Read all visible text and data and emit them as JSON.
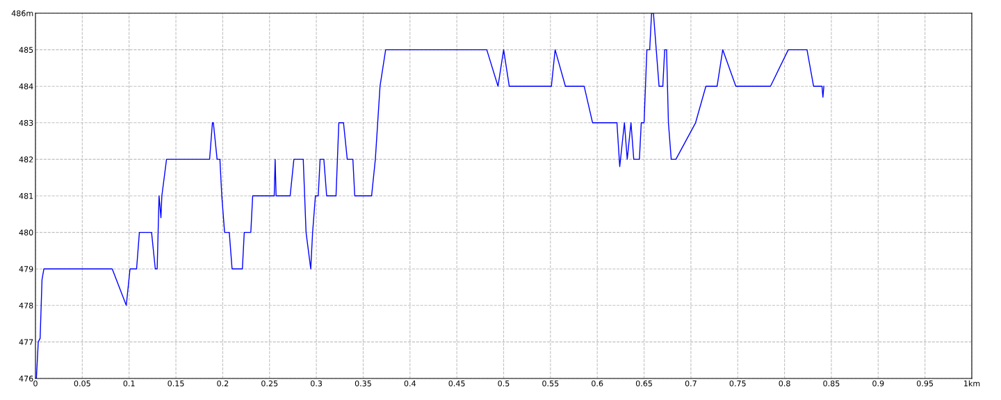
{
  "chart_data": {
    "type": "line",
    "series": [
      {
        "color": "#0000ff",
        "x": [
          0.001,
          0.003,
          0.005,
          0.007,
          0.009,
          0.082,
          0.097,
          0.101,
          0.108,
          0.111,
          0.124,
          0.128,
          0.13,
          0.132,
          0.134,
          0.135,
          0.14,
          0.186,
          0.189,
          0.19,
          0.194,
          0.197,
          0.199,
          0.202,
          0.207,
          0.21,
          0.221,
          0.223,
          0.23,
          0.232,
          0.255,
          0.256,
          0.257,
          0.272,
          0.276,
          0.286,
          0.289,
          0.294,
          0.296,
          0.299,
          0.302,
          0.304,
          0.308,
          0.311,
          0.321,
          0.324,
          0.329,
          0.333,
          0.339,
          0.341,
          0.359,
          0.363,
          0.368,
          0.374,
          0.482,
          0.494,
          0.5,
          0.506,
          0.551,
          0.555,
          0.566,
          0.586,
          0.595,
          0.621,
          0.624,
          0.629,
          0.632,
          0.636,
          0.639,
          0.645,
          0.647,
          0.65,
          0.653,
          0.656,
          0.658,
          0.66,
          0.663,
          0.666,
          0.67,
          0.672,
          0.674,
          0.676,
          0.679,
          0.684,
          0.705,
          0.716,
          0.728,
          0.734,
          0.748,
          0.785,
          0.804,
          0.824,
          0.831,
          0.84,
          0.841,
          0.842
        ],
        "values": [
          476,
          477,
          477.1,
          478.7,
          479,
          479,
          478,
          479,
          479,
          480,
          480,
          479,
          479,
          481,
          480.4,
          481,
          482,
          482,
          483,
          483,
          482,
          482,
          481,
          480,
          480,
          479,
          479,
          480,
          480,
          481,
          481,
          482,
          481,
          481,
          482,
          482,
          480,
          479,
          480,
          481,
          481,
          482,
          482,
          481,
          481,
          483,
          483,
          482,
          482,
          481,
          481,
          482,
          484,
          485,
          485,
          484,
          485,
          484,
          484,
          485,
          484,
          484,
          483,
          483,
          481.8,
          483,
          482,
          483,
          482,
          482,
          483,
          483,
          485,
          485,
          486,
          486,
          485,
          484,
          484,
          485,
          485,
          483,
          482,
          482,
          483,
          484,
          484,
          485,
          484,
          484,
          485,
          485,
          484,
          484,
          483.7,
          484
        ]
      }
    ],
    "xlim": [
      0,
      1
    ],
    "xticks": [
      0,
      0.05,
      0.1,
      0.15,
      0.2,
      0.25,
      0.3,
      0.35,
      0.4,
      0.45,
      0.5,
      0.55,
      0.6,
      0.65,
      0.7,
      0.75,
      0.8,
      0.85,
      0.9,
      0.95,
      {
        "value": 1,
        "label": "1km"
      }
    ],
    "ylim": [
      476,
      486
    ],
    "yticks": [
      476,
      477,
      478,
      479,
      480,
      481,
      482,
      483,
      484,
      485,
      {
        "value": 486,
        "label": "486m"
      }
    ],
    "grid": true,
    "line_style": "solid",
    "marker": "none"
  }
}
